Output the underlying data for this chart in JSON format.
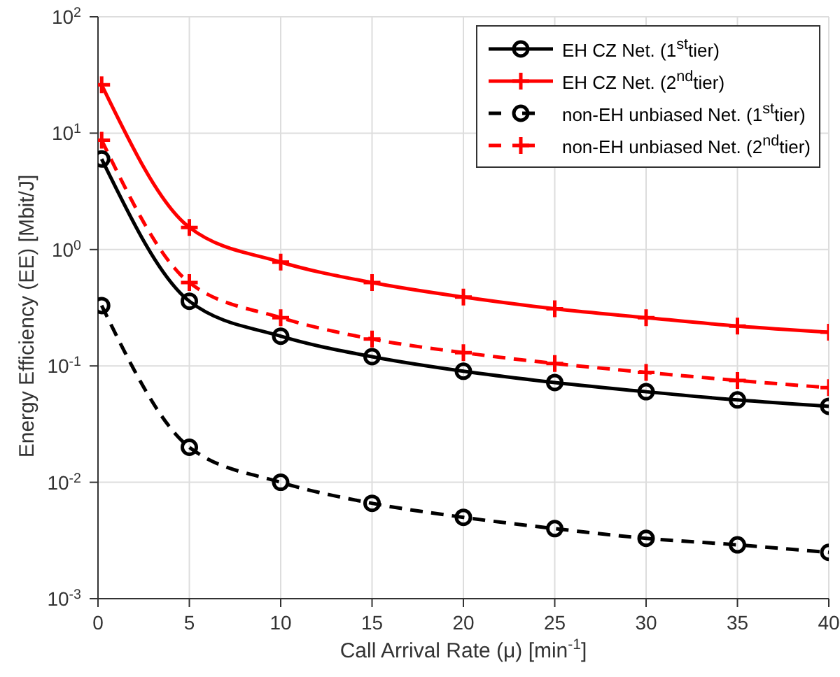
{
  "chart_data": {
    "type": "line",
    "xlabel": "Call Arrival Rate (μ) [min$^{-1}$]",
    "ylabel": "Energy Efficiency (EE) [Mbit/J]",
    "x": [
      0.2,
      5,
      10,
      15,
      20,
      25,
      30,
      35,
      40
    ],
    "series": [
      {
        "name": "EH CZ Net. (1$^{st}$tier)",
        "color": "#000000",
        "marker": "circle",
        "line_style": "solid",
        "values": [
          6,
          0.36,
          0.18,
          0.12,
          0.09,
          0.072,
          0.06,
          0.051,
          0.045
        ]
      },
      {
        "name": "EH CZ Net. (2$^{nd}$tier)",
        "color": "#ff0000",
        "marker": "cross",
        "line_style": "solid",
        "values": [
          26,
          1.55,
          0.78,
          0.52,
          0.39,
          0.31,
          0.26,
          0.22,
          0.195
        ]
      },
      {
        "name": "non-EH unbiased Net. (1$^{st}$tier)",
        "color": "#000000",
        "marker": "circle",
        "line_style": "dashed",
        "values": [
          0.33,
          0.02,
          0.01,
          0.0066,
          0.005,
          0.004,
          0.0033,
          0.0029,
          0.0025
        ]
      },
      {
        "name": "non-EH unbiased Net. (2$^{nd}$tier)",
        "color": "#ff0000",
        "marker": "cross",
        "line_style": "dashed",
        "values": [
          8.7,
          0.52,
          0.26,
          0.17,
          0.13,
          0.105,
          0.088,
          0.075,
          0.065
        ]
      }
    ],
    "log": "y",
    "xlim": [
      0,
      40
    ],
    "xticks": [
      0,
      5,
      10,
      15,
      20,
      25,
      30,
      35,
      40
    ],
    "ylim": [
      0.001,
      100
    ],
    "yticks": [
      {
        "value": 0.001,
        "label": "10$^{-3}$"
      },
      {
        "value": 0.01,
        "label": "10$^{-2}$"
      },
      {
        "value": 0.1,
        "label": "10$^{-1}$"
      },
      {
        "value": 1,
        "label": "10$^{0}$"
      },
      {
        "value": 10,
        "label": "10$^{1}$"
      },
      {
        "value": 100,
        "label": "10$^{2}$"
      }
    ],
    "grid": true,
    "legend": "top right"
  }
}
